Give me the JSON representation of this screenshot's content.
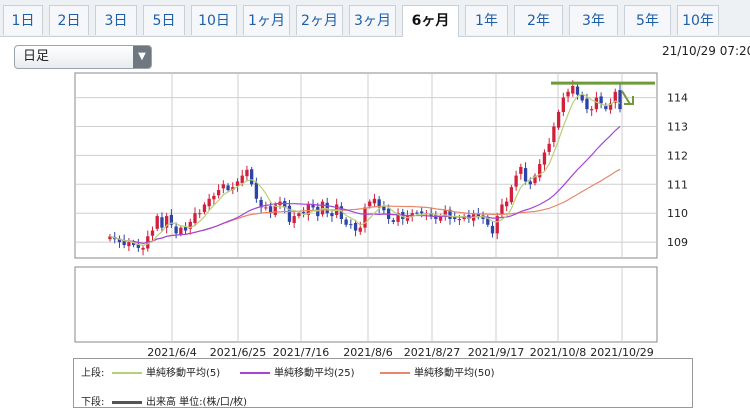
{
  "tabs": [
    {
      "label": "1日",
      "active": false
    },
    {
      "label": "2日",
      "active": false
    },
    {
      "label": "3日",
      "active": false
    },
    {
      "label": "5日",
      "active": false
    },
    {
      "label": "10日",
      "active": false
    },
    {
      "label": "1ヶ月",
      "active": false
    },
    {
      "label": "2ヶ月",
      "active": false
    },
    {
      "label": "3ヶ月",
      "active": false
    },
    {
      "label": "6ヶ月",
      "active": true
    },
    {
      "label": "1年",
      "active": false
    },
    {
      "label": "2年",
      "active": false
    },
    {
      "label": "3年",
      "active": false
    },
    {
      "label": "5年",
      "active": false
    },
    {
      "label": "10年",
      "active": false
    }
  ],
  "period_select": {
    "value": "日足"
  },
  "datetime": "21/10/29 07:20",
  "legend": {
    "upper_label": "上段:",
    "lower_label": "下段:",
    "volume_label": "出来高 単位:(株/口/枚)"
  },
  "colors": {
    "up": "#d21f3c",
    "down": "#2c44a8",
    "ma5": "#b7cf7a",
    "ma25": "#a445d8",
    "ma50": "#e6876a",
    "annotation": "#6f9a3a",
    "volume_bar": "#555555"
  },
  "chart_data": {
    "type": "candlestick",
    "yticks": [
      109,
      110,
      111,
      112,
      113,
      114
    ],
    "ylim": [
      108.45,
      114.85
    ],
    "xtick_labels": [
      "2021/6/4",
      "2021/6/25",
      "2021/7/16",
      "2021/8/6",
      "2021/8/27",
      "2021/9/17",
      "2021/10/8",
      "2021/10/29"
    ],
    "close": [
      109.2,
      109.1,
      109.0,
      108.9,
      109.0,
      108.9,
      108.8,
      108.8,
      109.2,
      109.4,
      109.9,
      109.5,
      109.9,
      109.6,
      109.3,
      109.5,
      109.4,
      109.7,
      110.0,
      110.0,
      110.3,
      110.5,
      110.6,
      110.8,
      111.0,
      110.8,
      110.9,
      111.1,
      111.3,
      111.5,
      111.0,
      110.5,
      110.2,
      110.2,
      110.0,
      110.3,
      110.4,
      110.2,
      109.7,
      109.9,
      110.0,
      110.0,
      110.3,
      110.2,
      109.9,
      110.4,
      110.0,
      109.9,
      110.3,
      109.8,
      109.6,
      109.6,
      109.4,
      109.5,
      110.2,
      110.4,
      110.5,
      110.2,
      110.1,
      109.8,
      109.7,
      110.0,
      109.8,
      109.9,
      110.0,
      110.0,
      110.0,
      110.0,
      109.9,
      109.8,
      109.9,
      110.1,
      109.8,
      109.8,
      109.8,
      109.9,
      109.8,
      110.0,
      109.9,
      109.8,
      109.6,
      109.3,
      109.9,
      110.3,
      110.4,
      110.9,
      111.3,
      111.6,
      111.1,
      111.0,
      111.3,
      111.7,
      112.1,
      112.4,
      113.0,
      113.5,
      114.0,
      114.2,
      114.4,
      114.1,
      113.9,
      113.6,
      113.6,
      114.0,
      113.8,
      113.6,
      113.8,
      114.2,
      113.6
    ],
    "sma5": [
      109.2,
      109.15,
      109.1,
      109.05,
      109.04,
      108.98,
      108.92,
      108.88,
      108.94,
      109.02,
      109.22,
      109.36,
      109.58,
      109.66,
      109.64,
      109.56,
      109.54,
      109.5,
      109.58,
      109.72,
      109.88,
      110.1,
      110.28,
      110.44,
      110.64,
      110.74,
      110.82,
      110.92,
      111.02,
      111.12,
      111.16,
      111.08,
      110.9,
      110.68,
      110.38,
      110.24,
      110.22,
      110.22,
      110.12,
      110.1,
      110.04,
      109.96,
      109.98,
      110.08,
      110.08,
      110.16,
      110.16,
      110.08,
      110.1,
      110.08,
      109.92,
      109.84,
      109.74,
      109.58,
      109.66,
      109.82,
      110.0,
      110.16,
      110.28,
      110.2,
      110.06,
      109.96,
      109.88,
      109.84,
      109.88,
      109.94,
      109.94,
      109.98,
      109.98,
      109.94,
      109.92,
      109.94,
      109.9,
      109.88,
      109.88,
      109.88,
      109.82,
      109.86,
      109.88,
      109.88,
      109.82,
      109.72,
      109.7,
      109.78,
      109.9,
      110.16,
      110.56,
      110.9,
      111.06,
      111.18,
      111.26,
      111.34,
      111.44,
      111.7,
      112.1,
      112.54,
      113.0,
      113.42,
      113.82,
      114.04,
      114.12,
      114.04,
      113.92,
      113.84,
      113.78,
      113.72,
      113.76,
      113.88,
      113.8
    ],
    "sma25": [
      109.2,
      109.15,
      109.1,
      109.05,
      109.04,
      109.02,
      108.99,
      108.96,
      108.99,
      109.03,
      109.11,
      109.14,
      109.2,
      109.23,
      109.24,
      109.26,
      109.27,
      109.3,
      109.34,
      109.38,
      109.42,
      109.47,
      109.52,
      109.58,
      109.65,
      109.72,
      109.78,
      109.85,
      109.94,
      110.04,
      110.12,
      110.18,
      110.23,
      110.27,
      110.29,
      110.32,
      110.34,
      110.34,
      110.33,
      110.33,
      110.32,
      110.31,
      110.31,
      110.3,
      110.28,
      110.28,
      110.26,
      110.23,
      110.2,
      110.16,
      110.12,
      110.07,
      110.02,
      109.98,
      109.97,
      109.97,
      109.97,
      109.96,
      109.97,
      109.97,
      109.95,
      109.95,
      109.93,
      109.92,
      109.92,
      109.92,
      109.92,
      109.91,
      109.9,
      109.88,
      109.9,
      109.9,
      109.89,
      109.88,
      109.87,
      109.86,
      109.86,
      109.87,
      109.88,
      109.88,
      109.86,
      109.83,
      109.83,
      109.85,
      109.87,
      109.91,
      109.98,
      110.06,
      110.11,
      110.16,
      110.23,
      110.3,
      110.39,
      110.49,
      110.62,
      110.78,
      110.95,
      111.14,
      111.33,
      111.51,
      111.67,
      111.84,
      112.01,
      112.2,
      112.37,
      112.53,
      112.69,
      112.86,
      113.0
    ],
    "sma50": [
      109.2,
      109.15,
      109.1,
      109.05,
      109.04,
      109.02,
      108.99,
      108.96,
      108.99,
      109.03,
      109.11,
      109.14,
      109.2,
      109.23,
      109.24,
      109.26,
      109.27,
      109.3,
      109.34,
      109.38,
      109.42,
      109.47,
      109.52,
      109.58,
      109.65,
      109.7,
      109.76,
      109.81,
      109.87,
      109.92,
      109.96,
      109.98,
      110.0,
      110.02,
      110.02,
      110.04,
      110.05,
      110.06,
      110.06,
      110.06,
      110.07,
      110.08,
      110.09,
      110.1,
      110.1,
      110.11,
      110.11,
      110.11,
      110.12,
      110.11,
      110.1,
      110.12,
      110.13,
      110.15,
      110.17,
      110.2,
      110.22,
      110.23,
      110.25,
      110.25,
      110.24,
      110.24,
      110.23,
      110.23,
      110.23,
      110.22,
      110.21,
      110.2,
      110.18,
      110.15,
      110.13,
      110.11,
      110.08,
      110.05,
      110.03,
      110.01,
      109.99,
      109.98,
      109.98,
      109.97,
      109.97,
      109.96,
      109.96,
      109.96,
      109.97,
      109.98,
      110.0,
      110.02,
      110.03,
      110.05,
      110.06,
      110.09,
      110.13,
      110.17,
      110.23,
      110.3,
      110.37,
      110.46,
      110.56,
      110.65,
      110.75,
      110.84,
      110.94,
      111.03,
      111.12,
      111.22,
      111.32,
      111.43,
      111.52
    ],
    "annotation": {
      "resistance_level": 114.5,
      "arrow": "down"
    }
  }
}
